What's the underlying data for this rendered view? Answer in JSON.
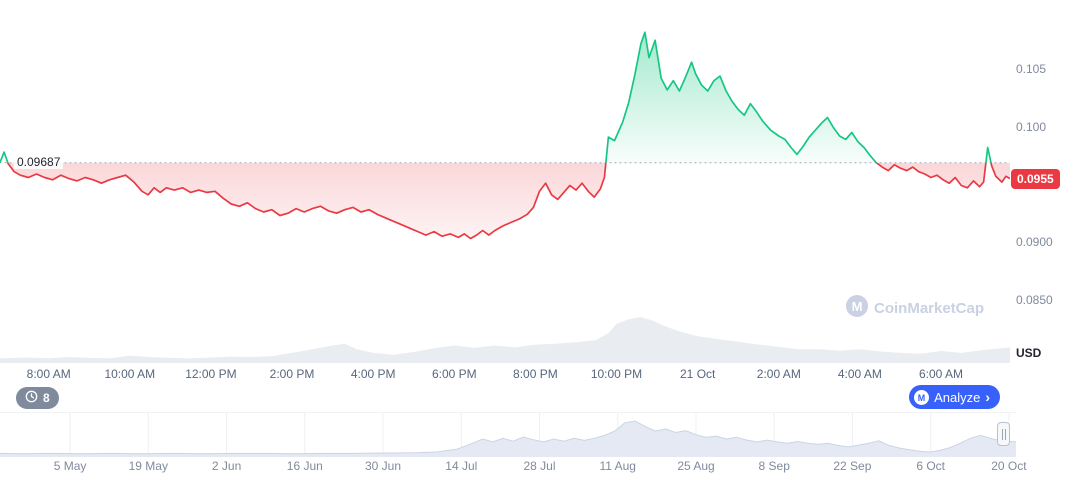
{
  "watermark_label": "CoinMarketCap",
  "history_badge": {
    "count": "8"
  },
  "analyze_button": {
    "label": "Analyze",
    "chevron": "›"
  },
  "chart_data": {
    "type": "line",
    "title": "",
    "baseline": {
      "value": 0.09687,
      "label": "0.09687"
    },
    "current_price": {
      "value": 0.0955,
      "label": "0.0955"
    },
    "colors": {
      "up": "#16c784",
      "down": "#ea3943",
      "baseline": "#9aa4b8",
      "axis_text": "#808a9d",
      "volume": "#e9ecf1",
      "accent_blue": "#3861fb",
      "badge_bg": "#ea3943",
      "nav_fill": "#e4e9f3",
      "nav_stroke": "#ccd4e4",
      "grid": "#edf0f5"
    },
    "y_axis": {
      "range": [
        0.0795,
        0.111
      ],
      "unit_label": "USD",
      "ticks": [
        {
          "value": 0.105,
          "label": "0.105"
        },
        {
          "value": 0.1,
          "label": "0.100"
        },
        {
          "value": 0.09,
          "label": "0.0900"
        },
        {
          "value": 0.085,
          "label": "0.0850"
        }
      ]
    },
    "x_axis": {
      "range": [
        -0.2,
        24.7
      ],
      "ticks": [
        {
          "t": 1,
          "label": "8:00 AM"
        },
        {
          "t": 3,
          "label": "10:00 AM"
        },
        {
          "t": 5,
          "label": "12:00 PM"
        },
        {
          "t": 7,
          "label": "2:00 PM"
        },
        {
          "t": 9,
          "label": "4:00 PM"
        },
        {
          "t": 11,
          "label": "6:00 PM"
        },
        {
          "t": 13,
          "label": "8:00 PM"
        },
        {
          "t": 15,
          "label": "10:00 PM"
        },
        {
          "t": 17,
          "label": "21 Oct"
        },
        {
          "t": 19,
          "label": "2:00 AM"
        },
        {
          "t": 21,
          "label": "4:00 AM"
        },
        {
          "t": 23,
          "label": "6:00 AM"
        }
      ]
    },
    "price_points": [
      [
        -0.2,
        0.0969
      ],
      [
        -0.1,
        0.0978
      ],
      [
        0,
        0.0968
      ],
      [
        0.15,
        0.0961
      ],
      [
        0.3,
        0.0958
      ],
      [
        0.5,
        0.0956
      ],
      [
        0.7,
        0.0959
      ],
      [
        0.9,
        0.0956
      ],
      [
        1.1,
        0.0954
      ],
      [
        1.3,
        0.0958
      ],
      [
        1.5,
        0.0955
      ],
      [
        1.7,
        0.0953
      ],
      [
        1.9,
        0.0956
      ],
      [
        2.1,
        0.0954
      ],
      [
        2.3,
        0.0951
      ],
      [
        2.5,
        0.0954
      ],
      [
        2.7,
        0.0956
      ],
      [
        2.9,
        0.0958
      ],
      [
        3.1,
        0.0952
      ],
      [
        3.3,
        0.0944
      ],
      [
        3.45,
        0.0941
      ],
      [
        3.6,
        0.0947
      ],
      [
        3.75,
        0.0943
      ],
      [
        3.9,
        0.0947
      ],
      [
        4.1,
        0.0945
      ],
      [
        4.3,
        0.0947
      ],
      [
        4.5,
        0.0943
      ],
      [
        4.7,
        0.0945
      ],
      [
        4.9,
        0.0943
      ],
      [
        5.1,
        0.0944
      ],
      [
        5.3,
        0.0938
      ],
      [
        5.5,
        0.0933
      ],
      [
        5.7,
        0.0931
      ],
      [
        5.9,
        0.0934
      ],
      [
        6.1,
        0.0929
      ],
      [
        6.3,
        0.0926
      ],
      [
        6.5,
        0.0928
      ],
      [
        6.7,
        0.0923
      ],
      [
        6.9,
        0.0925
      ],
      [
        7.1,
        0.0929
      ],
      [
        7.3,
        0.0926
      ],
      [
        7.5,
        0.0929
      ],
      [
        7.7,
        0.0931
      ],
      [
        7.9,
        0.0927
      ],
      [
        8.1,
        0.0925
      ],
      [
        8.3,
        0.0928
      ],
      [
        8.5,
        0.093
      ],
      [
        8.7,
        0.0926
      ],
      [
        8.9,
        0.0928
      ],
      [
        9.1,
        0.0924
      ],
      [
        9.3,
        0.0921
      ],
      [
        9.5,
        0.0918
      ],
      [
        9.7,
        0.0915
      ],
      [
        9.9,
        0.0912
      ],
      [
        10.1,
        0.0909
      ],
      [
        10.3,
        0.0906
      ],
      [
        10.5,
        0.0909
      ],
      [
        10.7,
        0.0905
      ],
      [
        10.9,
        0.0907
      ],
      [
        11.1,
        0.0904
      ],
      [
        11.25,
        0.0907
      ],
      [
        11.4,
        0.0903
      ],
      [
        11.55,
        0.0906
      ],
      [
        11.7,
        0.091
      ],
      [
        11.85,
        0.0906
      ],
      [
        12,
        0.091
      ],
      [
        12.2,
        0.0914
      ],
      [
        12.4,
        0.0917
      ],
      [
        12.6,
        0.092
      ],
      [
        12.8,
        0.0924
      ],
      [
        12.95,
        0.093
      ],
      [
        13.1,
        0.0944
      ],
      [
        13.25,
        0.0951
      ],
      [
        13.4,
        0.0941
      ],
      [
        13.55,
        0.0937
      ],
      [
        13.7,
        0.0943
      ],
      [
        13.85,
        0.0949
      ],
      [
        14,
        0.0945
      ],
      [
        14.15,
        0.0951
      ],
      [
        14.3,
        0.0944
      ],
      [
        14.45,
        0.0939
      ],
      [
        14.6,
        0.0946
      ],
      [
        14.7,
        0.0956
      ],
      [
        14.8,
        0.0991
      ],
      [
        14.95,
        0.0988
      ],
      [
        15.05,
        0.0996
      ],
      [
        15.15,
        0.1004
      ],
      [
        15.3,
        0.1021
      ],
      [
        15.45,
        0.1045
      ],
      [
        15.6,
        0.1072
      ],
      [
        15.7,
        0.1082
      ],
      [
        15.8,
        0.106
      ],
      [
        15.95,
        0.1075
      ],
      [
        16.1,
        0.1042
      ],
      [
        16.25,
        0.1032
      ],
      [
        16.4,
        0.104
      ],
      [
        16.55,
        0.1031
      ],
      [
        16.7,
        0.1043
      ],
      [
        16.85,
        0.1056
      ],
      [
        16.95,
        0.1046
      ],
      [
        17.1,
        0.1036
      ],
      [
        17.25,
        0.1031
      ],
      [
        17.4,
        0.104
      ],
      [
        17.55,
        0.1044
      ],
      [
        17.7,
        0.1031
      ],
      [
        17.85,
        0.1022
      ],
      [
        18,
        0.1015
      ],
      [
        18.15,
        0.101
      ],
      [
        18.3,
        0.102
      ],
      [
        18.45,
        0.1013
      ],
      [
        18.6,
        0.1005
      ],
      [
        18.8,
        0.0997
      ],
      [
        19,
        0.0992
      ],
      [
        19.15,
        0.0989
      ],
      [
        19.3,
        0.0982
      ],
      [
        19.45,
        0.0976
      ],
      [
        19.6,
        0.0983
      ],
      [
        19.75,
        0.0991
      ],
      [
        19.9,
        0.0997
      ],
      [
        20.05,
        0.1003
      ],
      [
        20.2,
        0.1008
      ],
      [
        20.35,
        0.0999
      ],
      [
        20.5,
        0.0992
      ],
      [
        20.65,
        0.0989
      ],
      [
        20.8,
        0.0995
      ],
      [
        20.95,
        0.0987
      ],
      [
        21.1,
        0.0982
      ],
      [
        21.25,
        0.0975
      ],
      [
        21.4,
        0.0969
      ],
      [
        21.55,
        0.0965
      ],
      [
        21.7,
        0.0962
      ],
      [
        21.85,
        0.0967
      ],
      [
        22,
        0.0964
      ],
      [
        22.15,
        0.0962
      ],
      [
        22.3,
        0.0965
      ],
      [
        22.45,
        0.0961
      ],
      [
        22.6,
        0.0959
      ],
      [
        22.75,
        0.0956
      ],
      [
        22.9,
        0.0958
      ],
      [
        23.05,
        0.0954
      ],
      [
        23.2,
        0.0951
      ],
      [
        23.35,
        0.0956
      ],
      [
        23.5,
        0.0949
      ],
      [
        23.65,
        0.0947
      ],
      [
        23.8,
        0.0953
      ],
      [
        23.95,
        0.0948
      ],
      [
        24.05,
        0.0952
      ],
      [
        24.15,
        0.0982
      ],
      [
        24.25,
        0.0966
      ],
      [
        24.35,
        0.0957
      ],
      [
        24.5,
        0.0952
      ],
      [
        24.6,
        0.0957
      ],
      [
        24.7,
        0.0955
      ]
    ],
    "volume_points": [
      [
        -0.2,
        0.1
      ],
      [
        0.5,
        0.12
      ],
      [
        1,
        0.1
      ],
      [
        1.5,
        0.13
      ],
      [
        2,
        0.11
      ],
      [
        2.5,
        0.1
      ],
      [
        3,
        0.16
      ],
      [
        3.5,
        0.13
      ],
      [
        4,
        0.11
      ],
      [
        4.5,
        0.1
      ],
      [
        5,
        0.12
      ],
      [
        5.5,
        0.14
      ],
      [
        6,
        0.13
      ],
      [
        6.5,
        0.15
      ],
      [
        7,
        0.22
      ],
      [
        7.5,
        0.3
      ],
      [
        8,
        0.38
      ],
      [
        8.3,
        0.42
      ],
      [
        8.6,
        0.3
      ],
      [
        9,
        0.22
      ],
      [
        9.5,
        0.18
      ],
      [
        10,
        0.24
      ],
      [
        10.5,
        0.32
      ],
      [
        11,
        0.38
      ],
      [
        11.5,
        0.33
      ],
      [
        12,
        0.38
      ],
      [
        12.5,
        0.34
      ],
      [
        13,
        0.4
      ],
      [
        13.5,
        0.42
      ],
      [
        14,
        0.45
      ],
      [
        14.5,
        0.5
      ],
      [
        14.8,
        0.65
      ],
      [
        15,
        0.85
      ],
      [
        15.3,
        0.95
      ],
      [
        15.6,
        1
      ],
      [
        15.9,
        0.92
      ],
      [
        16.2,
        0.8
      ],
      [
        16.5,
        0.7
      ],
      [
        17,
        0.58
      ],
      [
        17.5,
        0.52
      ],
      [
        18,
        0.46
      ],
      [
        18.5,
        0.4
      ],
      [
        19,
        0.35
      ],
      [
        19.5,
        0.3
      ],
      [
        20,
        0.3
      ],
      [
        20.5,
        0.27
      ],
      [
        21,
        0.3
      ],
      [
        21.5,
        0.25
      ],
      [
        22,
        0.22
      ],
      [
        22.5,
        0.2
      ],
      [
        23,
        0.26
      ],
      [
        23.5,
        0.22
      ],
      [
        24,
        0.28
      ],
      [
        24.7,
        0.34
      ]
    ]
  },
  "navigator": {
    "dates": [
      {
        "f": 0.069,
        "label": "5 May"
      },
      {
        "f": 0.146,
        "label": "19 May"
      },
      {
        "f": 0.223,
        "label": "2 Jun"
      },
      {
        "f": 0.3,
        "label": "16 Jun"
      },
      {
        "f": 0.377,
        "label": "30 Jun"
      },
      {
        "f": 0.454,
        "label": "14 Jul"
      },
      {
        "f": 0.531,
        "label": "28 Jul"
      },
      {
        "f": 0.608,
        "label": "11 Aug"
      },
      {
        "f": 0.685,
        "label": "25 Aug"
      },
      {
        "f": 0.762,
        "label": "8 Sep"
      },
      {
        "f": 0.839,
        "label": "22 Sep"
      },
      {
        "f": 0.916,
        "label": "6 Oct"
      },
      {
        "f": 0.993,
        "label": "20 Oct"
      }
    ],
    "area": [
      [
        0,
        0.1
      ],
      [
        0.02,
        0.09
      ],
      [
        0.05,
        0.1
      ],
      [
        0.08,
        0.09
      ],
      [
        0.11,
        0.1
      ],
      [
        0.14,
        0.09
      ],
      [
        0.17,
        0.1
      ],
      [
        0.2,
        0.09
      ],
      [
        0.23,
        0.1
      ],
      [
        0.26,
        0.1
      ],
      [
        0.29,
        0.09
      ],
      [
        0.32,
        0.1
      ],
      [
        0.35,
        0.1
      ],
      [
        0.38,
        0.11
      ],
      [
        0.41,
        0.12
      ],
      [
        0.43,
        0.14
      ],
      [
        0.45,
        0.22
      ],
      [
        0.465,
        0.38
      ],
      [
        0.475,
        0.5
      ],
      [
        0.485,
        0.42
      ],
      [
        0.495,
        0.52
      ],
      [
        0.505,
        0.44
      ],
      [
        0.515,
        0.55
      ],
      [
        0.525,
        0.48
      ],
      [
        0.535,
        0.42
      ],
      [
        0.545,
        0.5
      ],
      [
        0.555,
        0.44
      ],
      [
        0.565,
        0.52
      ],
      [
        0.575,
        0.46
      ],
      [
        0.585,
        0.52
      ],
      [
        0.595,
        0.6
      ],
      [
        0.605,
        0.72
      ],
      [
        0.615,
        0.95
      ],
      [
        0.625,
        1
      ],
      [
        0.635,
        0.85
      ],
      [
        0.645,
        0.72
      ],
      [
        0.655,
        0.78
      ],
      [
        0.665,
        0.68
      ],
      [
        0.675,
        0.73
      ],
      [
        0.685,
        0.62
      ],
      [
        0.695,
        0.55
      ],
      [
        0.705,
        0.58
      ],
      [
        0.715,
        0.5
      ],
      [
        0.725,
        0.55
      ],
      [
        0.735,
        0.47
      ],
      [
        0.745,
        0.42
      ],
      [
        0.755,
        0.47
      ],
      [
        0.765,
        0.42
      ],
      [
        0.775,
        0.38
      ],
      [
        0.785,
        0.43
      ],
      [
        0.795,
        0.38
      ],
      [
        0.805,
        0.35
      ],
      [
        0.815,
        0.38
      ],
      [
        0.825,
        0.32
      ],
      [
        0.835,
        0.28
      ],
      [
        0.845,
        0.33
      ],
      [
        0.855,
        0.38
      ],
      [
        0.865,
        0.45
      ],
      [
        0.875,
        0.32
      ],
      [
        0.885,
        0.25
      ],
      [
        0.895,
        0.2
      ],
      [
        0.905,
        0.16
      ],
      [
        0.915,
        0.14
      ],
      [
        0.925,
        0.18
      ],
      [
        0.935,
        0.26
      ],
      [
        0.945,
        0.38
      ],
      [
        0.955,
        0.52
      ],
      [
        0.965,
        0.6
      ],
      [
        0.975,
        0.52
      ],
      [
        0.985,
        0.45
      ],
      [
        1,
        0.42
      ]
    ]
  }
}
